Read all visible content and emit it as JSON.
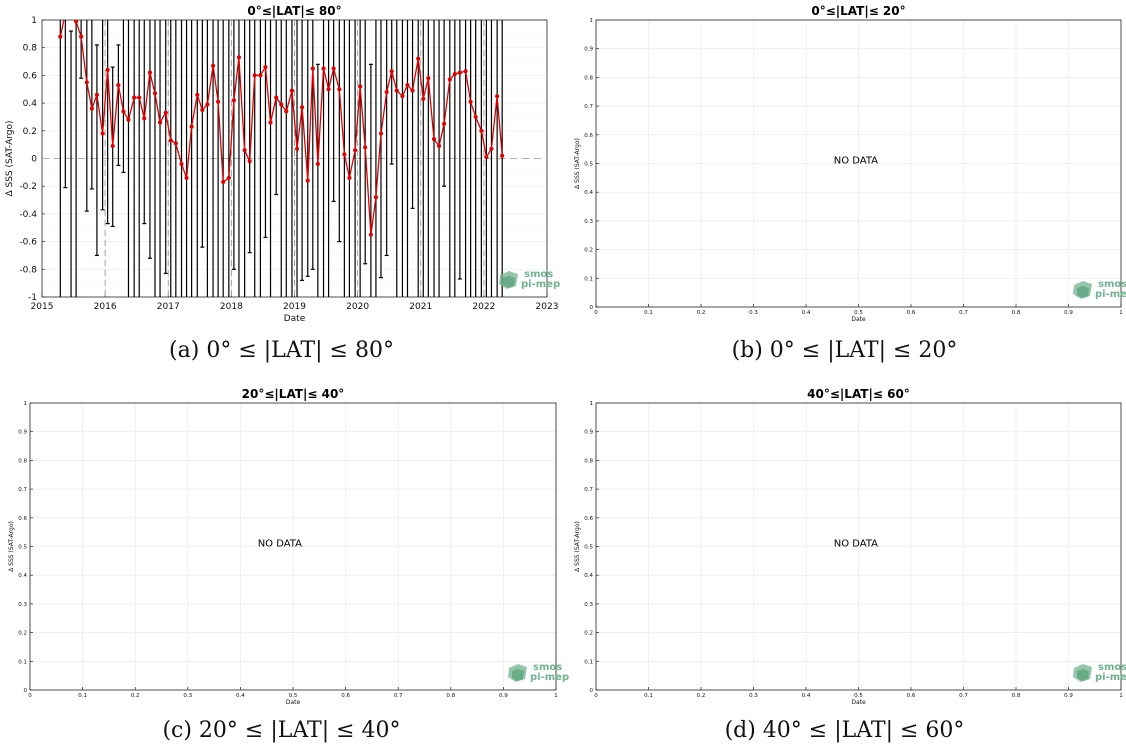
{
  "captions": [
    "(a) 0° ≤ |LAT| ≤ 80°",
    "(b) 0° ≤ |LAT| ≤ 20°",
    "(c) 20° ≤ |LAT| ≤ 40°",
    "(d) 40° ≤ |LAT| ≤ 60°"
  ],
  "logo": {
    "line1": "smos",
    "line2": "pi-mep",
    "color": "#6fb38f"
  },
  "chart_data": [
    {
      "type": "line",
      "title": "0°≤|LAT|≤ 80°",
      "xlabel": "Date",
      "ylabel": "Δ SSS (SAT-Argo)",
      "xlim": [
        2015,
        2023
      ],
      "ylim": [
        -1,
        1
      ],
      "x_ticks": [
        "2015",
        "2016",
        "2017",
        "2018",
        "2019",
        "2020",
        "2021",
        "2022",
        "2023"
      ],
      "y_ticks": [
        "-1",
        "-0.8",
        "-0.6",
        "-0.4",
        "-0.2",
        "0",
        "0.2",
        "0.4",
        "0.6",
        "0.8",
        "1"
      ],
      "grid": true,
      "line_color": "#e00000",
      "errorbar_color": "#000000",
      "x": [
        2015.29,
        2015.37,
        2015.46,
        2015.54,
        2015.62,
        2015.71,
        2015.79,
        2015.87,
        2015.96,
        2016.04,
        2016.12,
        2016.21,
        2016.29,
        2016.37,
        2016.46,
        2016.54,
        2016.62,
        2016.71,
        2016.79,
        2016.87,
        2016.96,
        2017.04,
        2017.12,
        2017.21,
        2017.29,
        2017.37,
        2017.46,
        2017.54,
        2017.62,
        2017.71,
        2017.79,
        2017.87,
        2017.96,
        2018.04,
        2018.12,
        2018.21,
        2018.29,
        2018.37,
        2018.46,
        2018.54,
        2018.62,
        2018.71,
        2018.79,
        2018.87,
        2018.96,
        2019.04,
        2019.12,
        2019.21,
        2019.29,
        2019.37,
        2019.46,
        2019.54,
        2019.62,
        2019.71,
        2019.79,
        2019.87,
        2019.96,
        2020.04,
        2020.12,
        2020.21,
        2020.29,
        2020.37,
        2020.46,
        2020.54,
        2020.62,
        2020.71,
        2020.79,
        2020.87,
        2020.96,
        2021.04,
        2021.12,
        2021.21,
        2021.29,
        2021.37,
        2021.46,
        2021.54,
        2021.62,
        2021.71,
        2021.79,
        2021.87,
        2021.96,
        2022.04,
        2022.12,
        2022.21,
        2022.29
      ],
      "y": [
        0.88,
        1.05,
        1.03,
        0.99,
        0.88,
        0.55,
        0.36,
        0.46,
        0.18,
        0.64,
        0.09,
        0.53,
        0.34,
        0.28,
        0.44,
        0.44,
        0.29,
        0.62,
        0.47,
        0.26,
        0.33,
        0.13,
        0.11,
        -0.04,
        -0.14,
        0.23,
        0.46,
        0.35,
        0.39,
        0.67,
        0.41,
        -0.17,
        -0.14,
        0.42,
        0.73,
        0.06,
        -0.02,
        0.6,
        0.6,
        0.66,
        0.26,
        0.44,
        0.39,
        0.34,
        0.49,
        0.07,
        0.37,
        -0.16,
        0.65,
        -0.04,
        0.65,
        0.5,
        0.65,
        0.5,
        0.03,
        -0.14,
        0.06,
        0.52,
        0.08,
        -0.55,
        -0.28,
        0.18,
        0.48,
        0.63,
        0.49,
        0.45,
        0.53,
        0.49,
        0.72,
        0.43,
        0.58,
        0.14,
        0.09,
        0.25,
        0.57,
        0.61,
        0.62,
        0.63,
        0.41,
        0.3,
        0.2,
        0.01,
        0.07,
        0.45,
        0.02
      ],
      "err_low": [
        -1.1,
        -0.21,
        -1.1,
        -1.1,
        0.58,
        -0.38,
        -0.22,
        -0.7,
        -0.37,
        -0.47,
        -0.49,
        -0.05,
        -0.1,
        -1.1,
        -1.1,
        -1.1,
        -0.47,
        -0.72,
        -1.1,
        -1.1,
        -0.83,
        -1.1,
        -1.1,
        -1.1,
        -1.1,
        -1.1,
        -1.1,
        -0.64,
        -1.1,
        -1.1,
        -1.1,
        -1.1,
        -1.1,
        -0.8,
        -1.1,
        -1.1,
        -0.68,
        -1.1,
        -1.1,
        -0.57,
        -1.1,
        -0.26,
        -1.1,
        -1.1,
        -1.1,
        -1.1,
        -0.88,
        -0.85,
        -0.8,
        -1.1,
        -1.1,
        -1.1,
        -0.31,
        -0.6,
        -1.1,
        -1.1,
        -1.1,
        -1.1,
        -0.76,
        -1.1,
        -1.1,
        -0.86,
        -0.7,
        -0.04,
        -1.1,
        -1.1,
        -1.1,
        -0.36,
        -1.1,
        -1.1,
        -1.1,
        -1.1,
        -1.1,
        -0.2,
        -1.1,
        -1.1,
        -0.87,
        -1.1,
        -1.1,
        -1.1,
        -1.1,
        -1.1,
        -1.1,
        -1.1,
        -1.1
      ],
      "err_high": [
        1.1,
        1.1,
        0.92,
        1.1,
        1.1,
        1.1,
        1.1,
        0.82,
        1.1,
        1.1,
        0.66,
        0.82,
        1.1,
        1.1,
        1.1,
        1.1,
        1.1,
        1.1,
        1.1,
        1.1,
        1.1,
        1.1,
        1.1,
        1.1,
        1.1,
        1.1,
        1.1,
        1.1,
        1.1,
        1.1,
        1.1,
        1.1,
        1.1,
        1.1,
        1.1,
        1.1,
        1.1,
        1.1,
        1.1,
        1.1,
        1.1,
        1.1,
        1.1,
        1.1,
        1.1,
        1.1,
        1.1,
        1.1,
        1.1,
        0.68,
        1.1,
        1.1,
        1.1,
        1.1,
        1.1,
        1.1,
        1.1,
        1.1,
        1.1,
        0.68,
        1.1,
        1.1,
        1.1,
        1.1,
        1.1,
        1.1,
        1.1,
        1.1,
        1.1,
        1.1,
        1.1,
        1.1,
        1.1,
        1.1,
        1.1,
        1.1,
        1.1,
        1.1,
        1.1,
        1.1,
        1.1,
        1.1,
        1.1,
        1.1,
        1.1
      ]
    },
    {
      "type": "line",
      "title": "0°≤|LAT|≤ 20°",
      "xlabel": "Date",
      "ylabel": "Δ SSS (SAT-Argo)",
      "xlim": [
        0,
        1
      ],
      "ylim": [
        0,
        1
      ],
      "x_ticks": [
        "0",
        "0.1",
        "0.2",
        "0.3",
        "0.4",
        "0.5",
        "0.6",
        "0.7",
        "0.8",
        "0.9",
        "1"
      ],
      "y_ticks": [
        "0",
        "0.1",
        "0.2",
        "0.3",
        "0.4",
        "0.5",
        "0.6",
        "0.7",
        "0.8",
        "0.9",
        "1"
      ],
      "grid": true,
      "annotation": "NO DATA"
    },
    {
      "type": "line",
      "title": "20°≤|LAT|≤ 40°",
      "xlabel": "Date",
      "ylabel": "Δ SSS (SAT-Argo)",
      "xlim": [
        0,
        1
      ],
      "ylim": [
        0,
        1
      ],
      "x_ticks": [
        "0",
        "0.1",
        "0.2",
        "0.3",
        "0.4",
        "0.5",
        "0.6",
        "0.7",
        "0.8",
        "0.9",
        "1"
      ],
      "y_ticks": [
        "0",
        "0.1",
        "0.2",
        "0.3",
        "0.4",
        "0.5",
        "0.6",
        "0.7",
        "0.8",
        "0.9",
        "1"
      ],
      "grid": true,
      "annotation": "NO DATA"
    },
    {
      "type": "line",
      "title": "40°≤|LAT|≤ 60°",
      "xlabel": "Date",
      "ylabel": "Δ SSS (SAT-Argo)",
      "xlim": [
        0,
        1
      ],
      "ylim": [
        0,
        1
      ],
      "x_ticks": [
        "0",
        "0.1",
        "0.2",
        "0.3",
        "0.4",
        "0.5",
        "0.6",
        "0.7",
        "0.8",
        "0.9",
        "1"
      ],
      "y_ticks": [
        "0",
        "0.1",
        "0.2",
        "0.3",
        "0.4",
        "0.5",
        "0.6",
        "0.7",
        "0.8",
        "0.9",
        "1"
      ],
      "grid": true,
      "annotation": "NO DATA"
    }
  ]
}
